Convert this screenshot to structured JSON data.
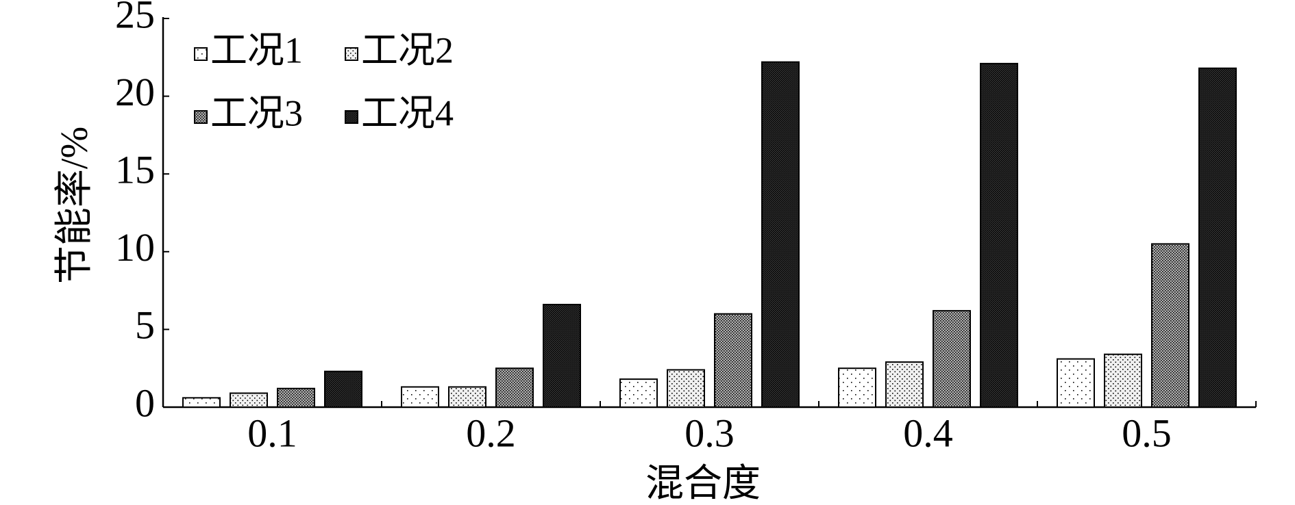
{
  "chart_data": {
    "type": "bar",
    "xlabel": "混合度",
    "ylabel": "节能率/%",
    "categories": [
      "0.1",
      "0.2",
      "0.3",
      "0.4",
      "0.5"
    ],
    "series": [
      {
        "name": "工况1",
        "color": "#ffffff",
        "values": [
          0.6,
          1.3,
          1.8,
          2.5,
          3.1
        ]
      },
      {
        "name": "工况2",
        "color": "#f0f0f0",
        "values": [
          0.9,
          1.3,
          2.4,
          2.9,
          3.4
        ]
      },
      {
        "name": "工况3",
        "color": "#b0b0b0",
        "values": [
          1.2,
          2.5,
          6.0,
          6.2,
          10.5
        ]
      },
      {
        "name": "工况4",
        "color": "#404040",
        "values": [
          2.3,
          6.6,
          22.2,
          22.1,
          21.8
        ]
      }
    ],
    "ylim": [
      0,
      25
    ],
    "yticks": [
      0,
      5,
      10,
      15,
      20,
      25
    ],
    "legend": "upper left"
  }
}
